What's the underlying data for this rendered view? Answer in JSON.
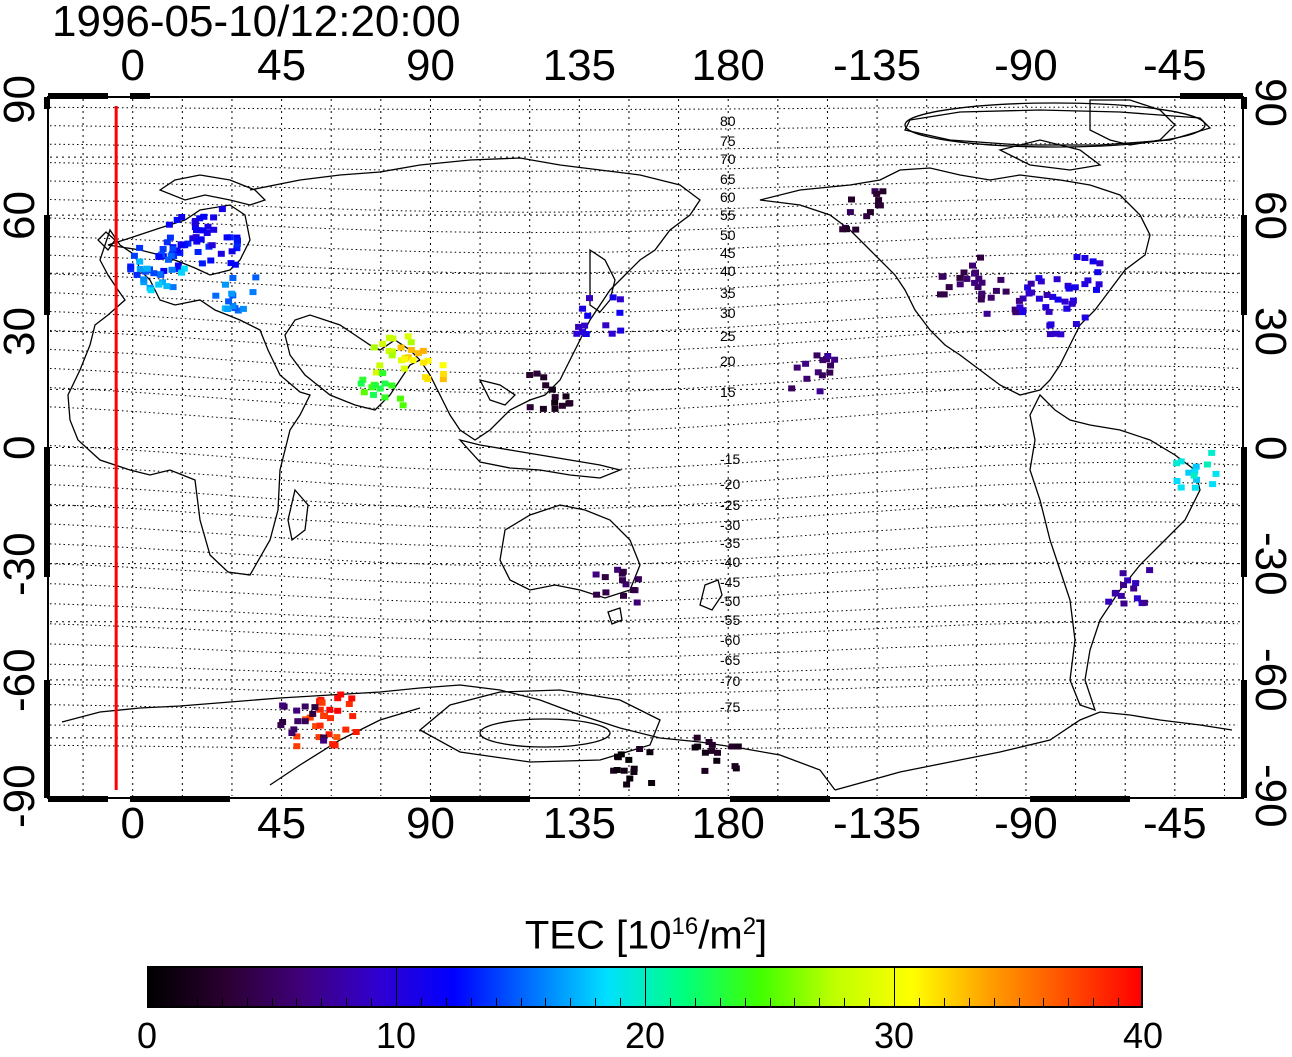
{
  "title": "1996-05-10/12:20:00",
  "lon_ticks_top": [
    "0",
    "45",
    "90",
    "135",
    "180",
    "-135",
    "-90",
    "-45"
  ],
  "lon_ticks_bottom": [
    "0",
    "45",
    "90",
    "135",
    "180",
    "-135",
    "-90",
    "-45"
  ],
  "lat_ticks_left": [
    "90",
    "60",
    "30",
    "0",
    "-30",
    "-60",
    "-90"
  ],
  "lat_ticks_right": [
    "90",
    "60",
    "30",
    "0",
    "-30",
    "-60",
    "-90"
  ],
  "contour_labels": [
    "80",
    "75",
    "70",
    "65",
    "60",
    "55",
    "50",
    "45",
    "40",
    "35",
    "30",
    "25",
    "20",
    "15",
    "-15",
    "-20",
    "-25",
    "-30",
    "-35",
    "-40",
    "-45",
    "-50",
    "-55",
    "-60",
    "-65",
    "-70",
    "-75"
  ],
  "colorbar": {
    "title": "TEC  [10",
    "title_sup": "16",
    "title_mid": "/m",
    "title_sup2": "2",
    "title_end": "]",
    "min": 0,
    "max": 40,
    "ticks": [
      "0",
      "10",
      "20",
      "30",
      "40"
    ],
    "colors": [
      "#000000",
      "#2a0030",
      "#40007a",
      "#3000d0",
      "#0000ff",
      "#0070ff",
      "#00e0ff",
      "#00ff80",
      "#40ff00",
      "#c0ff00",
      "#ffff00",
      "#ffa000",
      "#ff5000",
      "#ff0000"
    ]
  },
  "map": {
    "lon_range": [
      -25,
      335
    ],
    "lat_range": [
      -90,
      90
    ],
    "terminator_lon": -5,
    "terminator_color": "#ff0000"
  },
  "chart_data": {
    "type": "heatmap",
    "title": "1996-05-10/12:20:00",
    "xlabel": "",
    "ylabel": "",
    "colorbar_label": "TEC [10^16/m^2]",
    "clim": [
      0,
      40
    ],
    "x_ticks": [
      0,
      45,
      90,
      135,
      180,
      -135,
      -90,
      -45
    ],
    "y_ticks": [
      90,
      60,
      30,
      0,
      -30,
      -60,
      -90
    ],
    "grid": true,
    "points": [
      {
        "lon": 15,
        "lat": 55,
        "tec": 12
      },
      {
        "lon": 10,
        "lat": 50,
        "tec": 13
      },
      {
        "lon": 5,
        "lat": 48,
        "tec": 14
      },
      {
        "lon": 20,
        "lat": 58,
        "tec": 11
      },
      {
        "lon": 25,
        "lat": 52,
        "tec": 12
      },
      {
        "lon": 8,
        "lat": 44,
        "tec": 17
      },
      {
        "lon": 30,
        "lat": 40,
        "tec": 16
      },
      {
        "lon": 78,
        "lat": 25,
        "tec": 28
      },
      {
        "lon": 86,
        "lat": 22,
        "tec": 32
      },
      {
        "lon": 75,
        "lat": 15,
        "tec": 24
      },
      {
        "lon": 55,
        "lat": -72,
        "tec": 38
      },
      {
        "lon": 60,
        "lat": -68,
        "tec": 39
      },
      {
        "lon": 50,
        "lat": -70,
        "tec": 5
      },
      {
        "lon": 125,
        "lat": 15,
        "tec": 2
      },
      {
        "lon": 140,
        "lat": 35,
        "tec": 10
      },
      {
        "lon": 145,
        "lat": -35,
        "tec": 5
      },
      {
        "lon": -100,
        "lat": 40,
        "tec": 6
      },
      {
        "lon": -90,
        "lat": 40,
        "tec": 9
      },
      {
        "lon": -80,
        "lat": 35,
        "tec": 10
      },
      {
        "lon": -110,
        "lat": 45,
        "tec": 5
      },
      {
        "lon": -75,
        "lat": 45,
        "tec": 10
      },
      {
        "lon": -140,
        "lat": 62,
        "tec": 4
      },
      {
        "lon": -155,
        "lat": 20,
        "tec": 6
      },
      {
        "lon": -40,
        "lat": -5,
        "tec": 19
      },
      {
        "lon": -60,
        "lat": -35,
        "tec": 8
      },
      {
        "lon": 150,
        "lat": -82,
        "tec": 1
      },
      {
        "lon": 175,
        "lat": -78,
        "tec": 2
      }
    ]
  }
}
